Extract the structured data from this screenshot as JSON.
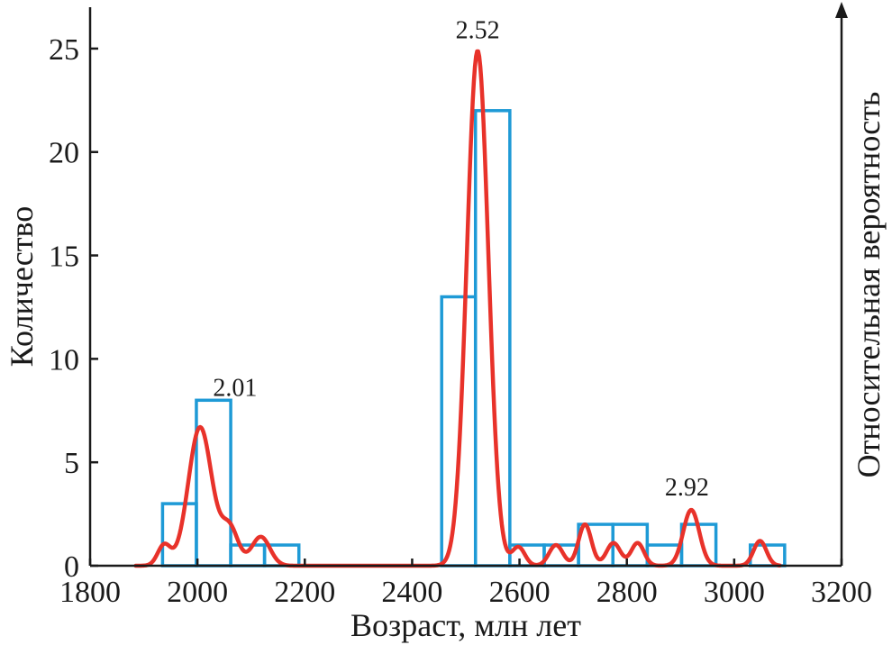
{
  "chart_data": {
    "type": "bar",
    "xlabel": "Возраст, млн лет",
    "ylabel": "Количество",
    "y2label": "Относительная вероятность",
    "xlim": [
      1800,
      3200
    ],
    "ylim": [
      0,
      27
    ],
    "x_ticks": [
      "1800",
      "2000",
      "2200",
      "2400",
      "2600",
      "2800",
      "3000",
      "3200"
    ],
    "y_ticks": [
      "0",
      "5",
      "10",
      "15",
      "20",
      "25"
    ],
    "bins": [
      {
        "x0": 1935,
        "x1": 1998,
        "count": 3
      },
      {
        "x0": 1998,
        "x1": 2062,
        "count": 8
      },
      {
        "x0": 2062,
        "x1": 2125,
        "count": 1
      },
      {
        "x0": 2125,
        "x1": 2189,
        "count": 1
      },
      {
        "x0": 2455,
        "x1": 2518,
        "count": 13
      },
      {
        "x0": 2518,
        "x1": 2582,
        "count": 22
      },
      {
        "x0": 2582,
        "x1": 2646,
        "count": 1
      },
      {
        "x0": 2646,
        "x1": 2710,
        "count": 1
      },
      {
        "x0": 2710,
        "x1": 2774,
        "count": 2
      },
      {
        "x0": 2774,
        "x1": 2838,
        "count": 2
      },
      {
        "x0": 2838,
        "x1": 2902,
        "count": 1
      },
      {
        "x0": 2902,
        "x1": 2966,
        "count": 2
      },
      {
        "x0": 3030,
        "x1": 3094,
        "count": 1
      }
    ],
    "probability_curve": {
      "components": [
        {
          "center": 1938,
          "sigma": 12,
          "height": 1.0
        },
        {
          "center": 2005,
          "sigma": 22,
          "height": 6.7
        },
        {
          "center": 2060,
          "sigma": 16,
          "height": 1.8
        },
        {
          "center": 2118,
          "sigma": 17,
          "height": 1.4
        },
        {
          "center": 2522,
          "sigma": 20,
          "height": 24.9
        },
        {
          "center": 2598,
          "sigma": 12,
          "height": 0.9
        },
        {
          "center": 2668,
          "sigma": 13,
          "height": 1.0
        },
        {
          "center": 2722,
          "sigma": 12,
          "height": 2.0
        },
        {
          "center": 2775,
          "sigma": 13,
          "height": 1.1
        },
        {
          "center": 2820,
          "sigma": 12,
          "height": 1.1
        },
        {
          "center": 2920,
          "sigma": 15,
          "height": 2.7
        },
        {
          "center": 3048,
          "sigma": 12,
          "height": 1.2
        }
      ]
    },
    "annotations": [
      {
        "text": "2.01",
        "x": 2070,
        "y": 8.2
      },
      {
        "text": "2.52",
        "x": 2522,
        "y": 25.5
      },
      {
        "text": "2.92",
        "x": 2912,
        "y": 3.4
      }
    ]
  }
}
